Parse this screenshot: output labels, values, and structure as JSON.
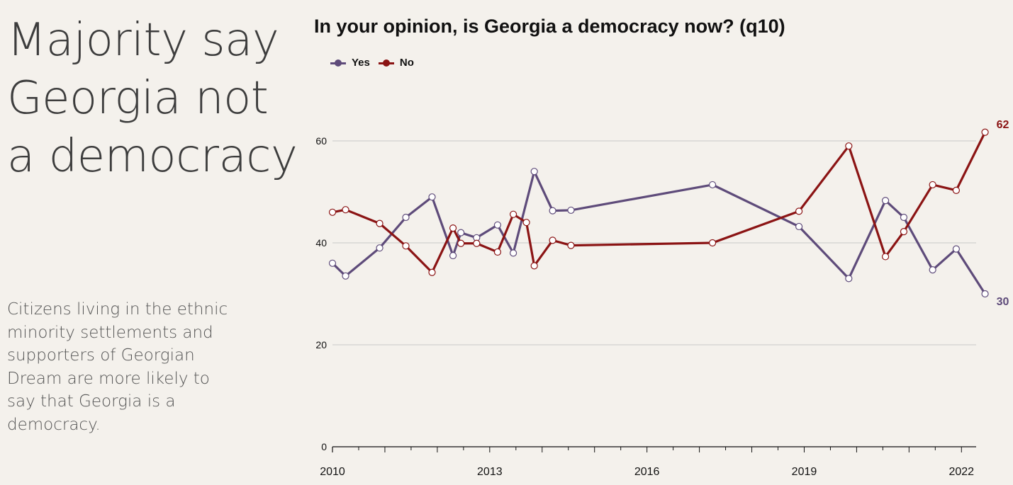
{
  "headline": [
    "Majority say",
    "Georgia not",
    "a democracy"
  ],
  "body_text": [
    "Citizens living in the ethnic",
    "minority settlements and",
    "supporters of Georgian",
    "Dream are more likely to",
    "say that Georgia is a",
    "democracy."
  ],
  "chart_data": {
    "type": "line",
    "title": "In your opinion, is Georgia a democracy now? (q10)",
    "xlabel": "",
    "ylabel": "",
    "xlim": [
      2010,
      2022.5
    ],
    "ylim": [
      0,
      62
    ],
    "x_ticks": [
      2010,
      2013,
      2016,
      2019,
      2022
    ],
    "y_ticks": [
      0,
      20,
      40,
      60
    ],
    "grid": "horizontal",
    "legend_position": "top-left",
    "series": [
      {
        "name": "Yes",
        "color": "#5e4b7a",
        "end_label": "30",
        "points": [
          [
            2010.0,
            36
          ],
          [
            2010.25,
            33.5
          ],
          [
            2010.9,
            39
          ],
          [
            2011.4,
            45
          ],
          [
            2011.9,
            49
          ],
          [
            2012.3,
            37.5
          ],
          [
            2012.45,
            42
          ],
          [
            2012.75,
            41
          ],
          [
            2013.15,
            43.5
          ],
          [
            2013.45,
            38
          ],
          [
            2013.85,
            54
          ],
          [
            2014.2,
            46.3
          ],
          [
            2014.55,
            46.4
          ],
          [
            2017.25,
            51.4
          ],
          [
            2018.9,
            43.2
          ],
          [
            2019.85,
            33
          ],
          [
            2020.55,
            48.3
          ],
          [
            2020.9,
            45
          ],
          [
            2021.45,
            34.7
          ],
          [
            2021.9,
            38.8
          ],
          [
            2022.45,
            30
          ]
        ]
      },
      {
        "name": "No",
        "color": "#8b1414",
        "end_label": "62",
        "points": [
          [
            2010.0,
            46
          ],
          [
            2010.25,
            46.5
          ],
          [
            2010.9,
            43.8
          ],
          [
            2011.4,
            39.4
          ],
          [
            2011.9,
            34.2
          ],
          [
            2012.3,
            42.9
          ],
          [
            2012.45,
            39.9
          ],
          [
            2012.75,
            39.9
          ],
          [
            2013.15,
            38.2
          ],
          [
            2013.45,
            45.6
          ],
          [
            2013.7,
            44
          ],
          [
            2013.85,
            35.5
          ],
          [
            2014.2,
            40.5
          ],
          [
            2014.55,
            39.5
          ],
          [
            2017.25,
            40
          ],
          [
            2018.9,
            46.2
          ],
          [
            2019.85,
            59
          ],
          [
            2020.55,
            37.3
          ],
          [
            2020.9,
            42.2
          ],
          [
            2021.45,
            51.4
          ],
          [
            2021.9,
            50.3
          ],
          [
            2022.45,
            61.7
          ]
        ]
      }
    ]
  }
}
